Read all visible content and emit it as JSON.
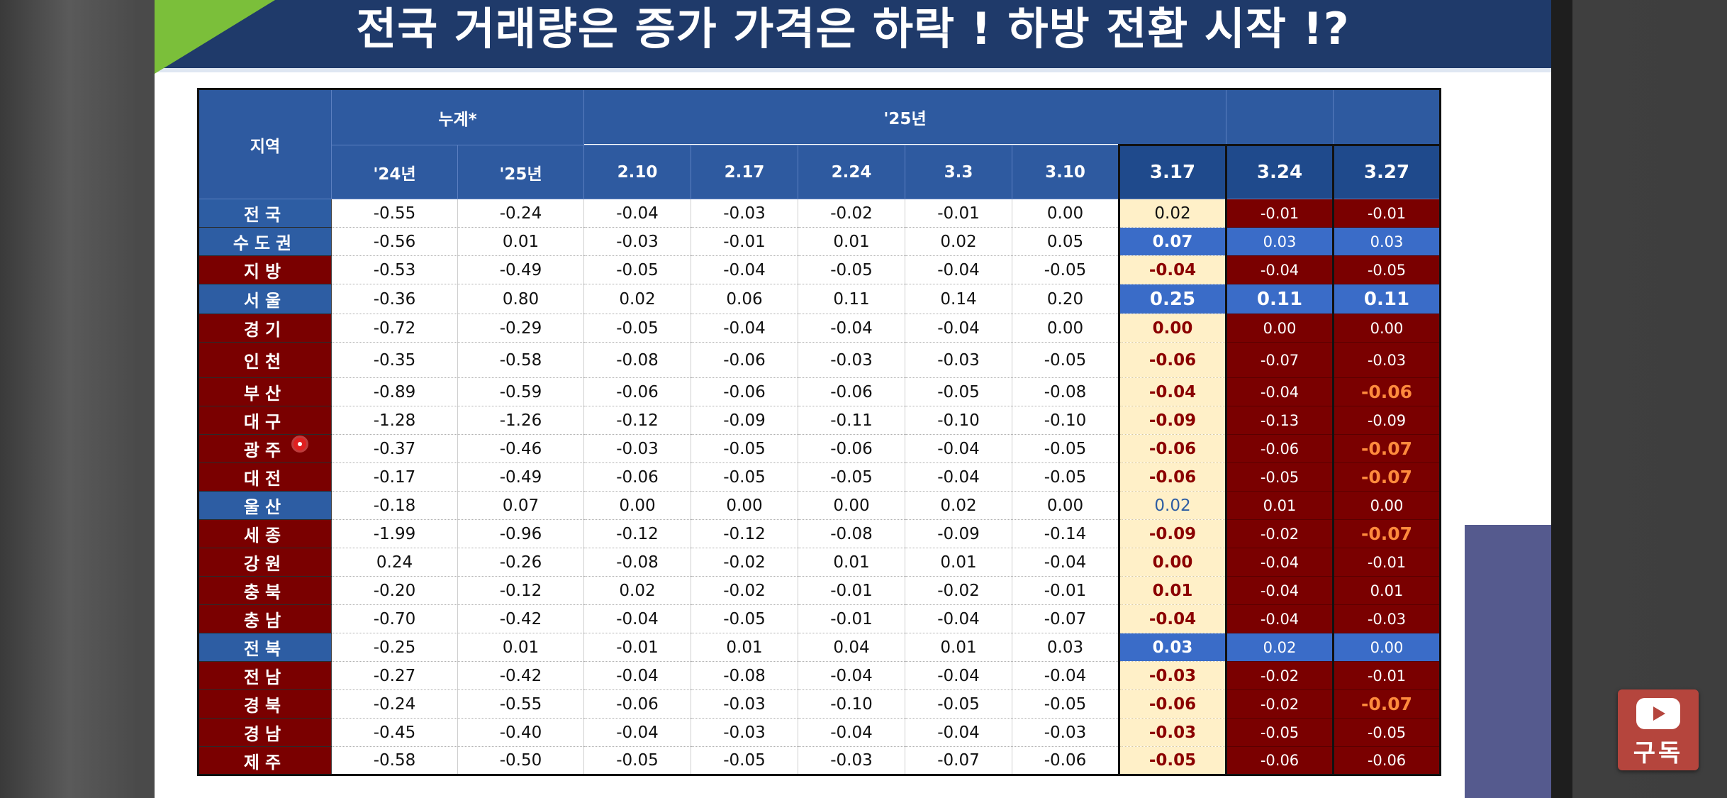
{
  "title": "전국 거래량은 증가 가격은 하락 ! 하방 전환 시작 !?",
  "table": {
    "header_region": "지역",
    "header_group_cum": "누계*",
    "header_group_year": "'25년",
    "col_headers": [
      "'24년",
      "'25년",
      "2.10",
      "2.17",
      "2.24",
      "3.3",
      "3.10",
      "3.17",
      "3.24",
      "3.27"
    ],
    "rows": [
      {
        "region": "전국",
        "color": "blue",
        "cells": [
          "-0.55",
          "-0.24",
          "-0.04",
          "-0.03",
          "-0.02",
          "-0.01",
          "0.00",
          "0.02",
          "-0.01",
          "-0.01"
        ]
      },
      {
        "region": "수도권",
        "color": "blue",
        "cells": [
          "-0.56",
          "0.01",
          "-0.03",
          "-0.01",
          "0.01",
          "0.02",
          "0.05",
          "0.07",
          "0.03",
          "0.03"
        ]
      },
      {
        "region": "지방",
        "color": "red",
        "cells": [
          "-0.53",
          "-0.49",
          "-0.05",
          "-0.04",
          "-0.05",
          "-0.04",
          "-0.05",
          "-0.04",
          "-0.04",
          "-0.05"
        ]
      },
      {
        "region": "서울",
        "color": "blue",
        "cells": [
          "-0.36",
          "0.80",
          "0.02",
          "0.06",
          "0.11",
          "0.14",
          "0.20",
          "0.25",
          "0.11",
          "0.11"
        ]
      },
      {
        "region": "경기",
        "color": "red",
        "cells": [
          "-0.72",
          "-0.29",
          "-0.05",
          "-0.04",
          "-0.04",
          "-0.04",
          "0.00",
          "0.00",
          "0.00",
          "0.00"
        ]
      },
      {
        "region": "인천",
        "color": "red",
        "cells": [
          "-0.35",
          "-0.58",
          "-0.08",
          "-0.06",
          "-0.03",
          "-0.03",
          "-0.05",
          "-0.06",
          "-0.07",
          "-0.03"
        ]
      },
      {
        "region": "부산",
        "color": "red",
        "cells": [
          "-0.89",
          "-0.59",
          "-0.06",
          "-0.06",
          "-0.06",
          "-0.05",
          "-0.08",
          "-0.04",
          "-0.04",
          "-0.06"
        ]
      },
      {
        "region": "대구",
        "color": "red",
        "cells": [
          "-1.28",
          "-1.26",
          "-0.12",
          "-0.09",
          "-0.11",
          "-0.10",
          "-0.10",
          "-0.09",
          "-0.13",
          "-0.09"
        ]
      },
      {
        "region": "광주",
        "color": "red",
        "cells": [
          "-0.37",
          "-0.46",
          "-0.03",
          "-0.05",
          "-0.06",
          "-0.04",
          "-0.05",
          "-0.06",
          "-0.06",
          "-0.07"
        ]
      },
      {
        "region": "대전",
        "color": "red",
        "cells": [
          "-0.17",
          "-0.49",
          "-0.06",
          "-0.05",
          "-0.05",
          "-0.04",
          "-0.05",
          "-0.06",
          "-0.05",
          "-0.07"
        ]
      },
      {
        "region": "울산",
        "color": "blue",
        "cells": [
          "-0.18",
          "0.07",
          "0.00",
          "0.00",
          "0.00",
          "0.02",
          "0.00",
          "0.02",
          "0.01",
          "0.00"
        ]
      },
      {
        "region": "세종",
        "color": "red",
        "cells": [
          "-1.99",
          "-0.96",
          "-0.12",
          "-0.12",
          "-0.08",
          "-0.09",
          "-0.14",
          "-0.09",
          "-0.02",
          "-0.07"
        ]
      },
      {
        "region": "강원",
        "color": "red",
        "cells": [
          "0.24",
          "-0.26",
          "-0.08",
          "-0.02",
          "0.01",
          "0.01",
          "-0.04",
          "0.00",
          "-0.04",
          "-0.01"
        ]
      },
      {
        "region": "충북",
        "color": "red",
        "cells": [
          "-0.20",
          "-0.12",
          "0.02",
          "-0.02",
          "-0.01",
          "-0.02",
          "-0.01",
          "0.01",
          "-0.04",
          "0.01"
        ]
      },
      {
        "region": "충남",
        "color": "red",
        "cells": [
          "-0.70",
          "-0.42",
          "-0.04",
          "-0.05",
          "-0.01",
          "-0.04",
          "-0.07",
          "-0.04",
          "-0.04",
          "-0.03"
        ]
      },
      {
        "region": "전북",
        "color": "blue",
        "cells": [
          "-0.25",
          "0.01",
          "-0.01",
          "0.01",
          "0.04",
          "0.01",
          "0.03",
          "0.03",
          "0.02",
          "0.00"
        ]
      },
      {
        "region": "전남",
        "color": "red",
        "cells": [
          "-0.27",
          "-0.42",
          "-0.04",
          "-0.08",
          "-0.04",
          "-0.04",
          "-0.04",
          "-0.03",
          "-0.02",
          "-0.01"
        ]
      },
      {
        "region": "경북",
        "color": "red",
        "cells": [
          "-0.24",
          "-0.55",
          "-0.06",
          "-0.03",
          "-0.10",
          "-0.05",
          "-0.05",
          "-0.06",
          "-0.02",
          "-0.07"
        ]
      },
      {
        "region": "경남",
        "color": "red",
        "cells": [
          "-0.45",
          "-0.40",
          "-0.04",
          "-0.03",
          "-0.04",
          "-0.04",
          "-0.03",
          "-0.03",
          "-0.05",
          "-0.05"
        ]
      },
      {
        "region": "제주",
        "color": "red",
        "cells": [
          "-0.58",
          "-0.50",
          "-0.05",
          "-0.05",
          "-0.03",
          "-0.07",
          "-0.06",
          "-0.05",
          "-0.06",
          "-0.06"
        ]
      }
    ]
  },
  "subscribe": {
    "label": "구독",
    "icon": "youtube-play-icon"
  },
  "colors": {
    "title_bg": "#1f3a6a",
    "header_bg": "#2e5aa0",
    "region_blue": "#2d5da3",
    "region_red": "#7a0000",
    "highlight_cream": "#fff0c8",
    "highlight_blue": "#3a6cc8",
    "accent_orange": "#ff8a3d"
  }
}
